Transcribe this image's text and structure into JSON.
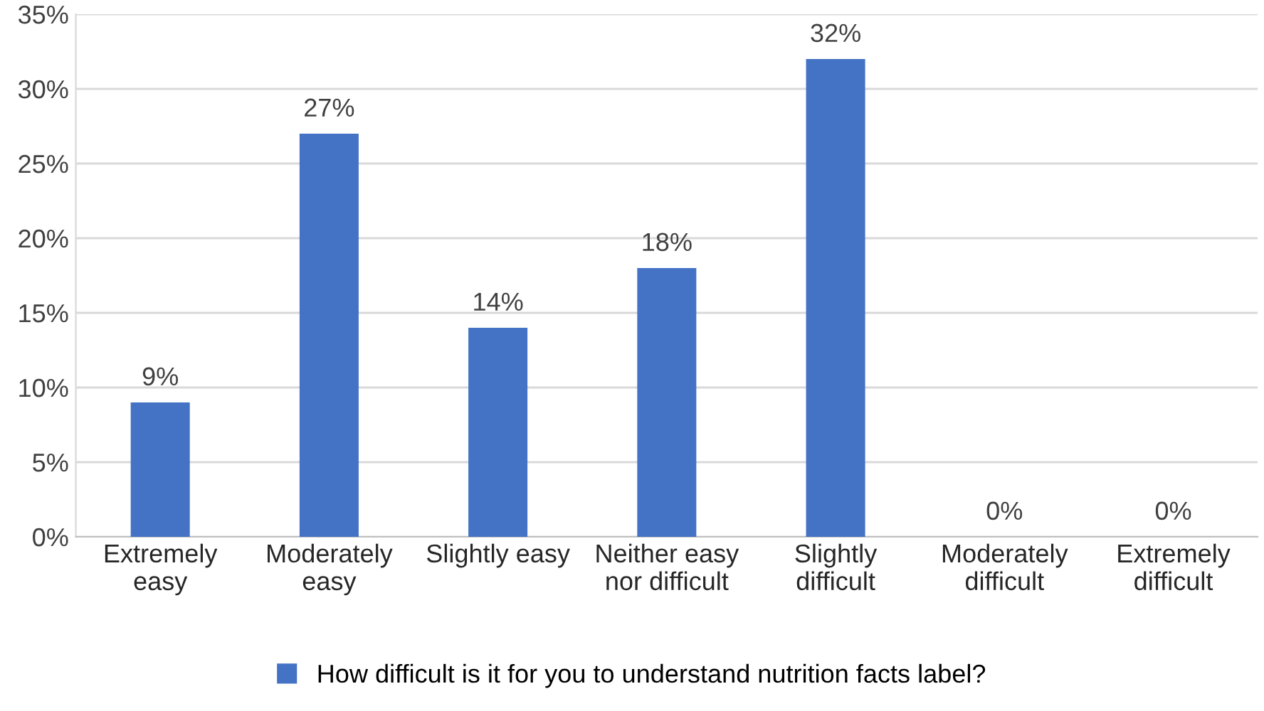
{
  "chart_data": {
    "type": "bar",
    "categories": [
      "Extremely\neasy",
      "Moderately\neasy",
      "Slightly easy",
      "Neither easy\nnor difficult",
      "Slightly\ndifficult",
      "Moderately\ndifficult",
      "Extremely\ndifficult"
    ],
    "series": [
      {
        "name": "How difficult is it for you to understand nutrition facts label?",
        "color": "#4472c4",
        "values": [
          9,
          27,
          14,
          18,
          32,
          0,
          0
        ],
        "value_labels": [
          "9%",
          "27%",
          "14%",
          "18%",
          "32%",
          "0%",
          "0%"
        ]
      }
    ],
    "ylim": [
      0,
      35
    ],
    "yticks": [
      {
        "value": 0,
        "label": "0%"
      },
      {
        "value": 5,
        "label": "5%"
      },
      {
        "value": 10,
        "label": "10%"
      },
      {
        "value": 15,
        "label": "15%"
      },
      {
        "value": 20,
        "label": "20%"
      },
      {
        "value": 25,
        "label": "25%"
      },
      {
        "value": 30,
        "label": "30%"
      },
      {
        "value": 35,
        "label": "35%"
      }
    ],
    "grid": "y",
    "legend": "bottom"
  }
}
